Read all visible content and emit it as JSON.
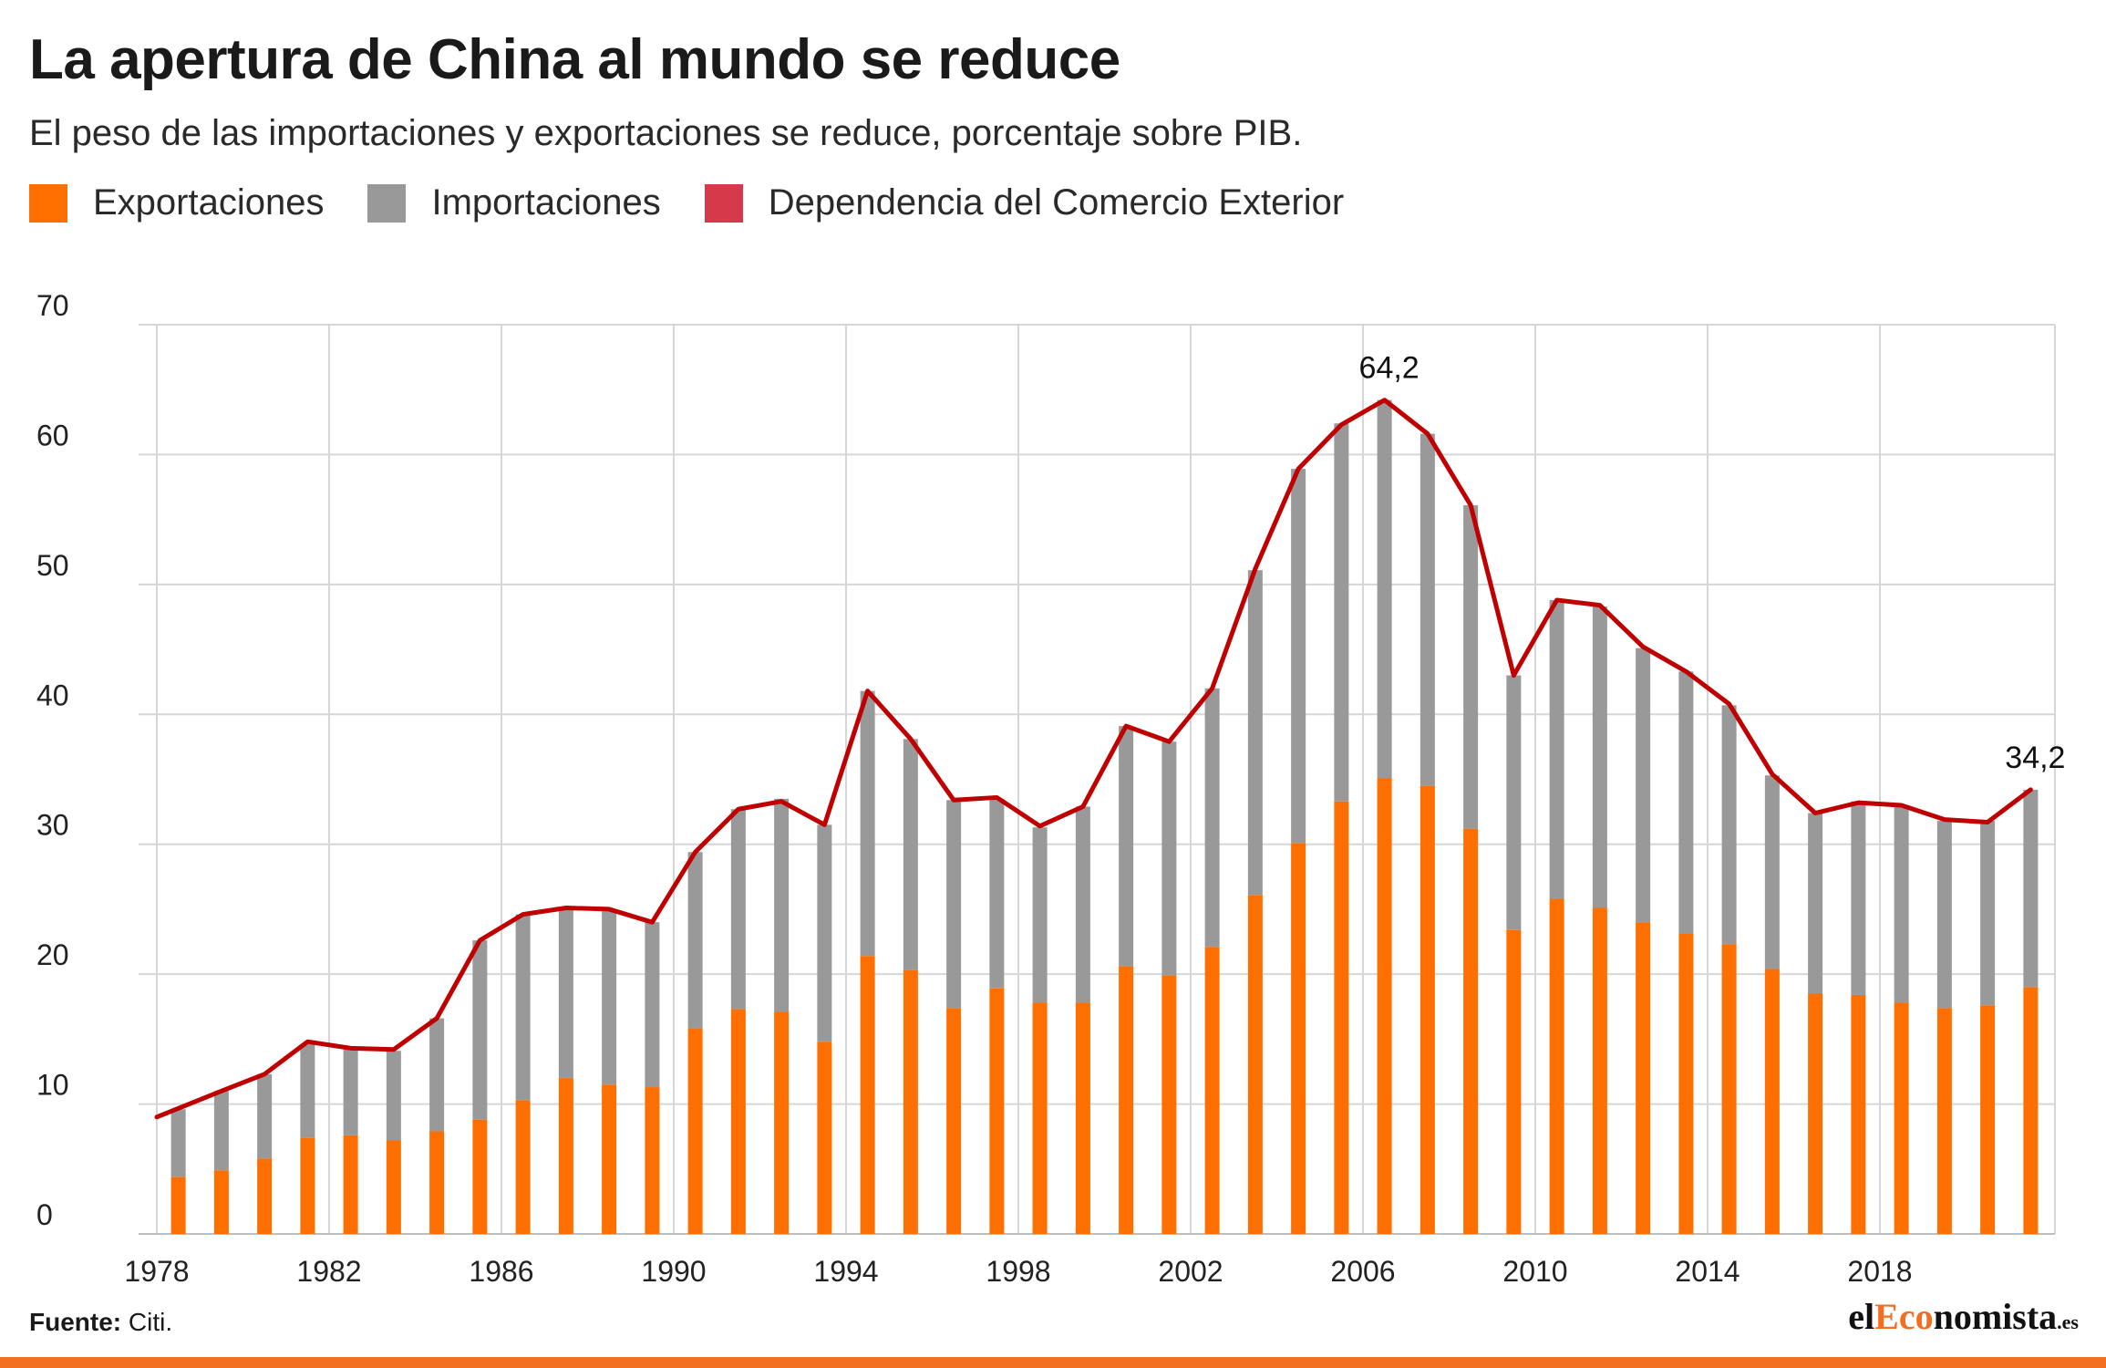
{
  "title": "La apertura de China al mundo se reduce",
  "subtitle": "El peso de las importaciones y exportaciones se reduce, porcentaje sobre PIB.",
  "colors": {
    "exports": "#ff6f00",
    "imports": "#999999",
    "line": "#c00000",
    "legend_line": "#d63a4a",
    "grid": "#d6d6d6"
  },
  "legend": [
    {
      "label": "Exportaciones",
      "color": "#ff6f00"
    },
    {
      "label": "Importaciones",
      "color": "#999999"
    },
    {
      "label": "Dependencia del Comercio Exterior",
      "color": "#d63a4a"
    }
  ],
  "source_label": "Fuente:",
  "source_text": "Citi.",
  "logo": {
    "part1": "el",
    "part2": "Eco",
    "part3": "nomista",
    "domain": ".es"
  },
  "chart_data": {
    "type": "bar",
    "stacked": true,
    "x": [
      1978,
      1979,
      1980,
      1981,
      1982,
      1983,
      1984,
      1985,
      1986,
      1987,
      1988,
      1989,
      1990,
      1991,
      1992,
      1993,
      1994,
      1995,
      1996,
      1997,
      1998,
      1999,
      2000,
      2001,
      2002,
      2003,
      2004,
      2005,
      2006,
      2007,
      2008,
      2009,
      2010,
      2011,
      2012,
      2013,
      2014,
      2015,
      2016,
      2017,
      2018,
      2019,
      2020,
      2021
    ],
    "x_ticks": [
      "1978",
      "1982",
      "1986",
      "1990",
      "1994",
      "1998",
      "2002",
      "2006",
      "2010",
      "2014",
      "2018"
    ],
    "y_ticks": [
      "0",
      "10",
      "20",
      "30",
      "40",
      "50",
      "60",
      "70"
    ],
    "ylim": [
      0,
      70
    ],
    "grid": true,
    "legend_position": "top-left",
    "series": [
      {
        "name": "Exportaciones",
        "values": [
          4.4,
          4.9,
          5.8,
          7.4,
          7.6,
          7.2,
          7.9,
          8.8,
          10.3,
          12.0,
          11.5,
          11.3,
          15.8,
          17.3,
          17.1,
          14.8,
          21.4,
          20.3,
          17.4,
          18.9,
          17.8,
          17.8,
          20.6,
          19.9,
          22.1,
          26.1,
          30.1,
          33.3,
          35.1,
          34.5,
          31.2,
          23.4,
          25.8,
          25.1,
          24.0,
          23.1,
          22.3,
          20.4,
          18.5,
          18.4,
          17.8,
          17.4,
          17.6,
          19.0
        ]
      },
      {
        "name": "Importaciones",
        "values": [
          5.2,
          6.1,
          6.5,
          7.2,
          6.6,
          6.9,
          8.7,
          13.8,
          14.3,
          13.1,
          13.5,
          12.7,
          13.6,
          15.4,
          16.4,
          16.7,
          20.4,
          17.8,
          16.0,
          14.6,
          13.5,
          15.1,
          18.5,
          18.0,
          19.9,
          25.0,
          28.8,
          29.1,
          29.1,
          27.1,
          24.9,
          19.6,
          23.0,
          23.2,
          21.1,
          20.2,
          18.4,
          14.9,
          13.9,
          14.9,
          15.2,
          14.4,
          14.2,
          15.2
        ]
      },
      {
        "name": "Dependencia del Comercio Exterior",
        "type": "line",
        "values": [
          9.0,
          11.0,
          12.3,
          14.8,
          14.3,
          14.2,
          16.6,
          22.6,
          24.6,
          25.1,
          25.0,
          24.0,
          29.4,
          32.7,
          33.3,
          31.5,
          41.8,
          38.1,
          33.4,
          33.6,
          31.4,
          32.9,
          39.1,
          37.9,
          42.0,
          51.2,
          58.9,
          62.3,
          64.2,
          61.6,
          56.1,
          43.0,
          48.8,
          48.4,
          45.2,
          43.3,
          40.8,
          35.4,
          32.4,
          33.2,
          33.0,
          31.9,
          31.7,
          34.2
        ]
      }
    ],
    "annotations": [
      {
        "x": 2006,
        "y": 64.2,
        "text": "64,2"
      },
      {
        "x": 2021,
        "y": 34.2,
        "text": "34,2"
      }
    ]
  }
}
